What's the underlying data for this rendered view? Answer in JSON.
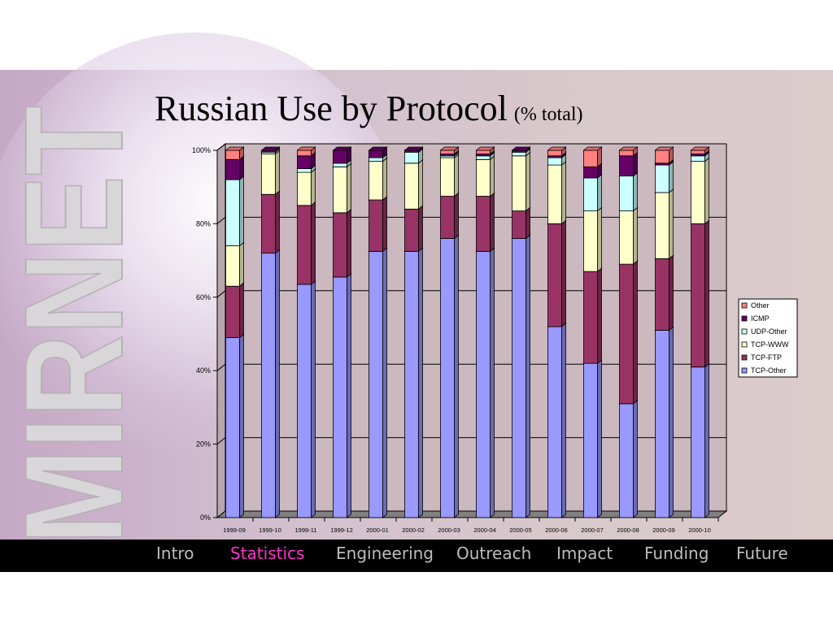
{
  "slide": {
    "title": "Russian Use by Protocol",
    "subtitle": "(% total)",
    "logo_text": "MIRNET"
  },
  "nav": {
    "items": [
      {
        "label": "Intro",
        "active": false
      },
      {
        "label": "Statistics",
        "active": true
      },
      {
        "label": "Engineering",
        "active": false
      },
      {
        "label": "Outreach",
        "active": false
      },
      {
        "label": "Impact",
        "active": false
      },
      {
        "label": "Funding",
        "active": false
      },
      {
        "label": "Future",
        "active": false
      }
    ]
  },
  "chart_data": {
    "type": "bar",
    "stacked": true,
    "percent_stacked": true,
    "three_d": true,
    "categories": [
      "1999-09",
      "1999-10",
      "1999-11",
      "1999-12",
      "2000-01",
      "2000-02",
      "2000-03",
      "2000-04",
      "2000-05",
      "2000-06",
      "2000-07",
      "2000-08",
      "2000-09",
      "2000-10"
    ],
    "series": [
      {
        "name": "TCP-Other",
        "color": "#9999ff",
        "values": [
          49,
          72,
          63.5,
          65.5,
          72.5,
          72.5,
          76,
          72.5,
          76,
          52,
          42,
          31,
          51,
          41
        ]
      },
      {
        "name": "TCP-FTP",
        "color": "#993366",
        "values": [
          14,
          16,
          21.5,
          17.5,
          14,
          11.5,
          11.5,
          15,
          7.5,
          28,
          25,
          38,
          19.5,
          39
        ]
      },
      {
        "name": "TCP-WWW",
        "color": "#ffffcc",
        "values": [
          11,
          11,
          9,
          12.5,
          10.5,
          12.5,
          10.5,
          10,
          15,
          16,
          16.5,
          14.5,
          18,
          17
        ]
      },
      {
        "name": "UDP-Other",
        "color": "#ccffff",
        "values": [
          18,
          0.5,
          1,
          1,
          1,
          3,
          0.5,
          1,
          1,
          2,
          9,
          9.5,
          7.5,
          1.5
        ]
      },
      {
        "name": "ICMP",
        "color": "#660066",
        "values": [
          5.5,
          0.5,
          3.5,
          3.5,
          2,
          0.5,
          0.5,
          0.5,
          0.5,
          0.5,
          3,
          5.5,
          0.5,
          0.5
        ]
      },
      {
        "name": "Other",
        "color": "#ff8080",
        "values": [
          2.5,
          0,
          1.5,
          0,
          0,
          0,
          1,
          1,
          0,
          1.5,
          4.5,
          1.5,
          3.5,
          1
        ]
      }
    ],
    "y_ticks": [
      "0%",
      "20%",
      "40%",
      "60%",
      "80%",
      "100%"
    ],
    "ylim": [
      0,
      100
    ],
    "grid": true,
    "legend_position": "right",
    "legend_order": [
      "Other",
      "ICMP",
      "UDP-Other",
      "TCP-WWW",
      "TCP-FTP",
      "TCP-Other"
    ],
    "wall_color": "#cbb9bf",
    "floor_color": "#808080"
  }
}
